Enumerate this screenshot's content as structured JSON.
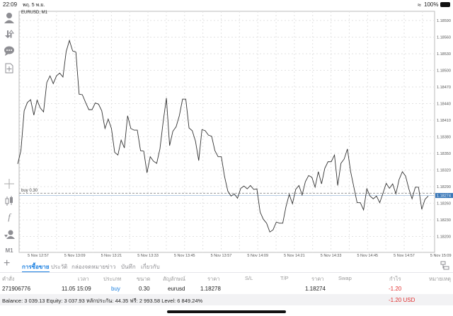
{
  "status_bar": {
    "time": "22:09",
    "date": "พฤ. 5 พ.ย.",
    "battery": "100%"
  },
  "chart": {
    "symbol_label": "EURUSD, M1",
    "buy_line_label": "buy 0.30",
    "current_price": "1.18274",
    "timeframe": "M1"
  },
  "toolbar": {
    "icons": [
      "account-icon",
      "trade-icon",
      "chat-icon",
      "new-order-icon",
      "crosshair-icon",
      "chart-type-icon",
      "indicators-icon",
      "objects-icon"
    ]
  },
  "chart_data": {
    "type": "line",
    "title": "EURUSD, M1",
    "y_ticks": [
      "1.18590",
      "1.18560",
      "1.18530",
      "1.18500",
      "1.18470",
      "1.18440",
      "1.18410",
      "1.18380",
      "1.18350",
      "1.18320",
      "1.18290",
      "1.18260",
      "1.18230",
      "1.18200"
    ],
    "ylim": [
      1.18185,
      1.1861
    ],
    "x_ticks": [
      "5 Nov 12:57",
      "5 Nov 13:09",
      "5 Nov 13:21",
      "5 Nov 13:33",
      "5 Nov 13:45",
      "5 Nov 13:57",
      "5 Nov 14:09",
      "5 Nov 14:21",
      "5 Nov 14:33",
      "5 Nov 14:45",
      "5 Nov 14:57",
      "5 Nov 15:09"
    ],
    "grid": true,
    "buy_level": 1.18278,
    "last_price": 1.18274,
    "values": [
      1.18331,
      1.18355,
      1.18427,
      1.18442,
      1.18447,
      1.18419,
      1.18446,
      1.18432,
      1.18425,
      1.18478,
      1.1849,
      1.18476,
      1.1849,
      1.18495,
      1.18488,
      1.18534,
      1.18554,
      1.18535,
      1.18533,
      1.18457,
      1.18456,
      1.18442,
      1.18429,
      1.18429,
      1.18441,
      1.18439,
      1.18427,
      1.18395,
      1.18412,
      1.18395,
      1.18352,
      1.18347,
      1.18374,
      1.1836,
      1.18418,
      1.18395,
      1.18392,
      1.18392,
      1.18355,
      1.18354,
      1.18315,
      1.18344,
      1.18336,
      1.18332,
      1.18358,
      1.18407,
      1.1845,
      1.18364,
      1.1839,
      1.18398,
      1.18418,
      1.18448,
      1.18448,
      1.18396,
      1.18391,
      1.18372,
      1.18337,
      1.18393,
      1.18391,
      1.18383,
      1.18381,
      1.18355,
      1.18344,
      1.18344,
      1.18308,
      1.18282,
      1.18273,
      1.18277,
      1.18269,
      1.18287,
      1.18291,
      1.18286,
      1.18292,
      1.18285,
      1.18286,
      1.18244,
      1.18231,
      1.18224,
      1.18208,
      1.18212,
      1.18226,
      1.18224,
      1.18224,
      1.18254,
      1.18276,
      1.18259,
      1.18285,
      1.18292,
      1.18275,
      1.18299,
      1.1831,
      1.18307,
      1.18289,
      1.18317,
      1.18295,
      1.18323,
      1.18335,
      1.18335,
      1.18347,
      1.18292,
      1.18332,
      1.1834,
      1.18358,
      1.18317,
      1.18289,
      1.18261,
      1.18261,
      1.18248,
      1.18286,
      1.18273,
      1.18268,
      1.18273,
      1.18261,
      1.18278,
      1.18296,
      1.18287,
      1.18295,
      1.18277,
      1.18303,
      1.18317,
      1.18309,
      1.18286,
      1.18268,
      1.18289,
      1.18289,
      1.18249,
      1.18267,
      1.18273
    ]
  },
  "tabs": [
    {
      "label": "การซื้อขาย",
      "active": true
    },
    {
      "label": "ประวัติ"
    },
    {
      "label": "กล่องจดหมาย"
    },
    {
      "label": "ข่าว"
    },
    {
      "label": "บันทึก"
    },
    {
      "label": "เกี่ยวกับ"
    }
  ],
  "table": {
    "headers": [
      "คำสั่ง",
      "เวลา",
      "ประเภท",
      "ขนาด",
      "สัญลักษณ์",
      "ราคา",
      "S/L",
      "T/P",
      "ราคา",
      "Swap",
      "กำไร",
      "หมายเหตุ"
    ],
    "rows": [
      {
        "order": "271906776",
        "time": "11.05 15:09",
        "type": "buy",
        "size": "0.30",
        "symbol": "eurusd",
        "open_price": "1.18278",
        "sl": "",
        "tp": "",
        "price": "1.18274",
        "swap": "",
        "profit": "-1.20",
        "comment": ""
      }
    ],
    "summary": "Balance: 3 039.13 Equity: 3 037.93 หลักประกัน: 44.35 ฟรี: 2 993.58 Level: 6 849.24%",
    "summary_profit": "-1.20  USD"
  },
  "colors": {
    "accent": "#1a7fe0",
    "loss": "#e03030",
    "price_box": "#3a78b8"
  }
}
